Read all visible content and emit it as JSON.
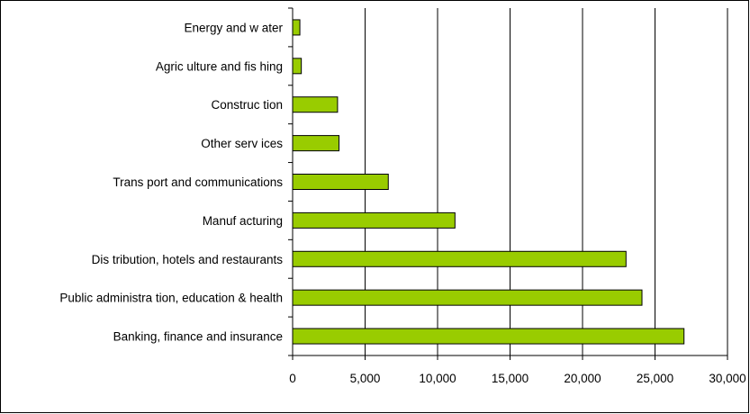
{
  "chart_data": {
    "type": "bar",
    "orientation": "horizontal",
    "categories": [
      "Energy and w ater",
      "Agric ulture and fis hing",
      "Construc tion",
      "Other serv ices",
      "Trans port and communications",
      "Manuf acturing",
      "Dis tribution, hotels and restaurants",
      "Public administra tion, education & health",
      "Banking, finance and insurance"
    ],
    "values": [
      500,
      600,
      3100,
      3200,
      6600,
      11200,
      23000,
      24100,
      27000
    ],
    "xlim": [
      0,
      30000
    ],
    "xticks": [
      0,
      5000,
      10000,
      15000,
      20000,
      25000,
      30000
    ],
    "xtick_labels": [
      "0",
      "5,000",
      "10,000",
      "15,000",
      "20,000",
      "25,000",
      "30,000"
    ],
    "grid": "vertical",
    "bar_color": "#99cc00"
  }
}
